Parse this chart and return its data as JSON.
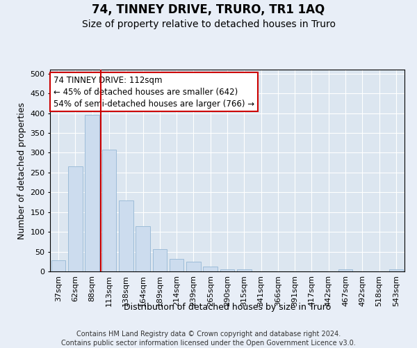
{
  "title": "74, TINNEY DRIVE, TRURO, TR1 1AQ",
  "subtitle": "Size of property relative to detached houses in Truro",
  "xlabel": "Distribution of detached houses by size in Truro",
  "ylabel": "Number of detached properties",
  "categories": [
    "37sqm",
    "62sqm",
    "88sqm",
    "113sqm",
    "138sqm",
    "164sqm",
    "189sqm",
    "214sqm",
    "239sqm",
    "265sqm",
    "290sqm",
    "315sqm",
    "341sqm",
    "366sqm",
    "391sqm",
    "417sqm",
    "442sqm",
    "467sqm",
    "492sqm",
    "518sqm",
    "543sqm"
  ],
  "values": [
    28,
    265,
    395,
    308,
    180,
    115,
    57,
    32,
    24,
    12,
    6,
    5,
    0,
    0,
    0,
    0,
    0,
    5,
    0,
    0,
    5
  ],
  "bar_color": "#ccdcee",
  "bar_edge_color": "#9dbcd8",
  "vline_x_index": 2.5,
  "vline_color": "#cc0000",
  "annotation_line1": "74 TINNEY DRIVE: 112sqm",
  "annotation_line2": "← 45% of detached houses are smaller (642)",
  "annotation_line3": "54% of semi-detached houses are larger (766) →",
  "annotation_box_color": "#ffffff",
  "annotation_box_edge": "#cc0000",
  "background_color": "#e8eef7",
  "plot_bg_color": "#dce6f0",
  "grid_color": "#ffffff",
  "footer_line1": "Contains HM Land Registry data © Crown copyright and database right 2024.",
  "footer_line2": "Contains public sector information licensed under the Open Government Licence v3.0.",
  "ylim": [
    0,
    510
  ],
  "yticks": [
    0,
    50,
    100,
    150,
    200,
    250,
    300,
    350,
    400,
    450,
    500
  ],
  "title_fontsize": 12,
  "subtitle_fontsize": 10,
  "axis_label_fontsize": 9,
  "tick_fontsize": 8,
  "annotation_fontsize": 8.5,
  "footer_fontsize": 7
}
